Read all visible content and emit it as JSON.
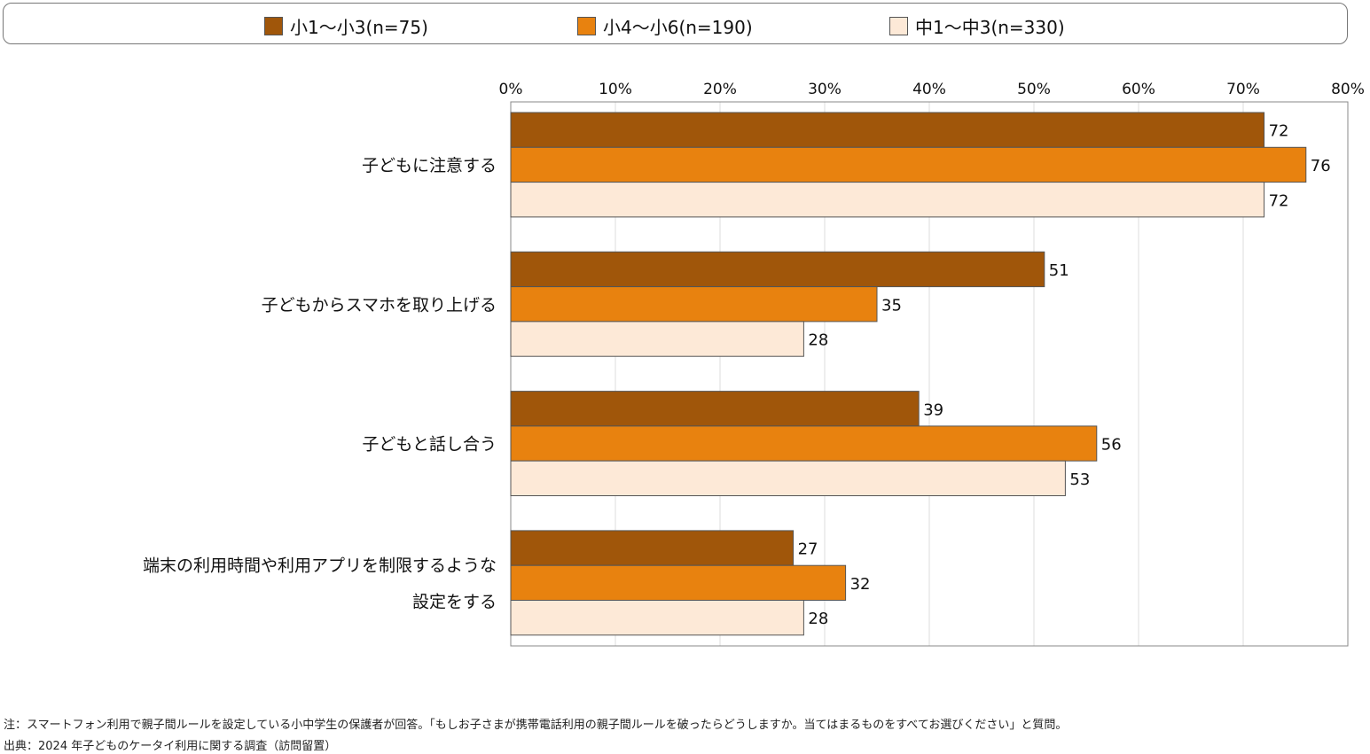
{
  "chart_data": {
    "type": "bar",
    "orientation": "horizontal",
    "categories": [
      "子どもに注意する",
      "子どもからスマホを取り上げる",
      "子どもと話し合う",
      "端末の利用時間や利用アプリを制限するような設定をする"
    ],
    "category_lines": [
      [
        "子どもに注意する"
      ],
      [
        "子どもからスマホを取り上げる"
      ],
      [
        "子どもと話し合う"
      ],
      [
        "端末の利用時間や利用アプリを制限するような",
        "設定をする"
      ]
    ],
    "series": [
      {
        "name": "小1〜小3(n=75)",
        "color": "#A0560A",
        "values": [
          72,
          51,
          39,
          27
        ]
      },
      {
        "name": "小4〜小6(n=190)",
        "color": "#E8820F",
        "values": [
          76,
          35,
          56,
          32
        ]
      },
      {
        "name": "中1〜中3(n=330)",
        "color": "#FDE9D7",
        "values": [
          72,
          28,
          53,
          28
        ]
      }
    ],
    "xlim": [
      0,
      80
    ],
    "xticks": [
      "0%",
      "10%",
      "20%",
      "30%",
      "40%",
      "50%",
      "60%",
      "70%",
      "80%"
    ],
    "grid": true,
    "legend_position": "top"
  },
  "notes": {
    "note": "注：スマートフォン利用で親子間ルールを設定している小中学生の保護者が回答。「もしお子さまが携帯電話利用の親子間ルールを破ったらどうしますか。当てはまるものをすべてお選びください」と質問。",
    "source": "出典：2024 年子どものケータイ利用に関する調査（訪問留置）"
  }
}
